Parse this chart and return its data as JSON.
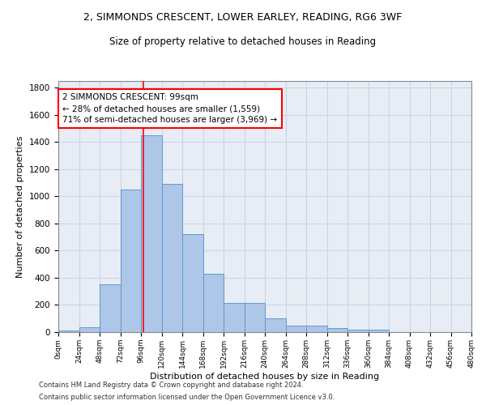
{
  "title1": "2, SIMMONDS CRESCENT, LOWER EARLEY, READING, RG6 3WF",
  "title2": "Size of property relative to detached houses in Reading",
  "xlabel": "Distribution of detached houses by size in Reading",
  "ylabel": "Number of detached properties",
  "footnote1": "Contains HM Land Registry data © Crown copyright and database right 2024.",
  "footnote2": "Contains public sector information licensed under the Open Government Licence v3.0.",
  "bin_edges": [
    0,
    24,
    48,
    72,
    96,
    120,
    144,
    168,
    192,
    216,
    240,
    264,
    288,
    312,
    336,
    360,
    384,
    408,
    432,
    456,
    480
  ],
  "bar_heights": [
    10,
    35,
    350,
    1050,
    1450,
    1090,
    725,
    430,
    215,
    215,
    100,
    50,
    45,
    30,
    20,
    15,
    0,
    0,
    0,
    0
  ],
  "bar_color": "#aec6e8",
  "bar_edge_color": "#5b9bd5",
  "grid_color": "#c8d4e8",
  "vline_x": 99,
  "vline_color": "red",
  "annotation_line1": "2 SIMMONDS CRESCENT: 99sqm",
  "annotation_line2": "← 28% of detached houses are smaller (1,559)",
  "annotation_line3": "71% of semi-detached houses are larger (3,969) →",
  "annotation_box_color": "white",
  "annotation_box_edge_color": "red",
  "ylim": [
    0,
    1850
  ],
  "yticks": [
    0,
    200,
    400,
    600,
    800,
    1000,
    1200,
    1400,
    1600,
    1800
  ],
  "xlim": [
    0,
    480
  ],
  "background_color": "#e8edf5"
}
